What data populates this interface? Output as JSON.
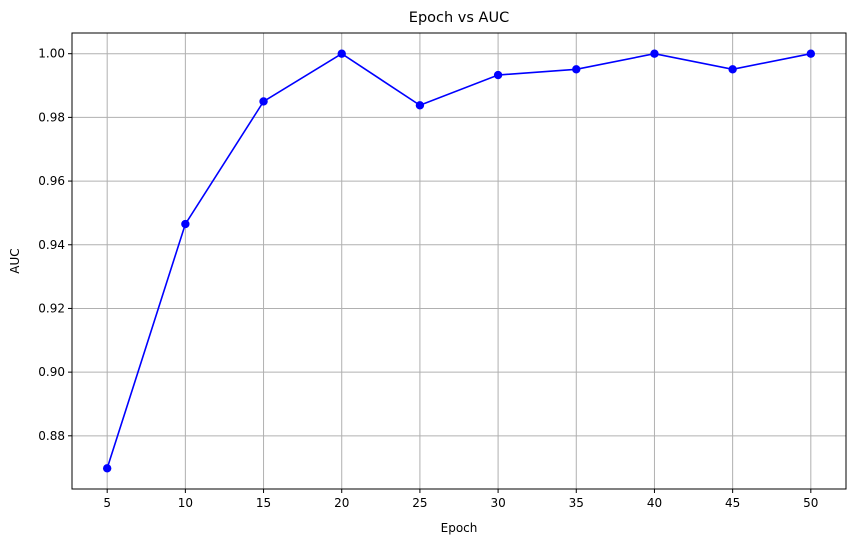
{
  "chart_data": {
    "type": "line",
    "title": "Epoch vs AUC",
    "xlabel": "Epoch",
    "ylabel": "AUC",
    "x": [
      5,
      10,
      15,
      20,
      25,
      30,
      35,
      40,
      45,
      50
    ],
    "series": [
      {
        "values": [
          0.8698,
          0.9465,
          0.985,
          1.0,
          0.9838,
          0.9933,
          0.9951,
          1.0,
          0.9951,
          1.0
        ],
        "color": "#0000ff",
        "marker": "circle"
      }
    ],
    "xticks": [
      5,
      10,
      15,
      20,
      25,
      30,
      35,
      40,
      45,
      50
    ],
    "yticks": [
      "0.88",
      "0.90",
      "0.92",
      "0.94",
      "0.96",
      "0.98",
      "1.00"
    ],
    "xlim": [
      2.75,
      52.25
    ],
    "ylim": [
      0.8633,
      1.0065
    ],
    "grid": true,
    "legend": false
  }
}
